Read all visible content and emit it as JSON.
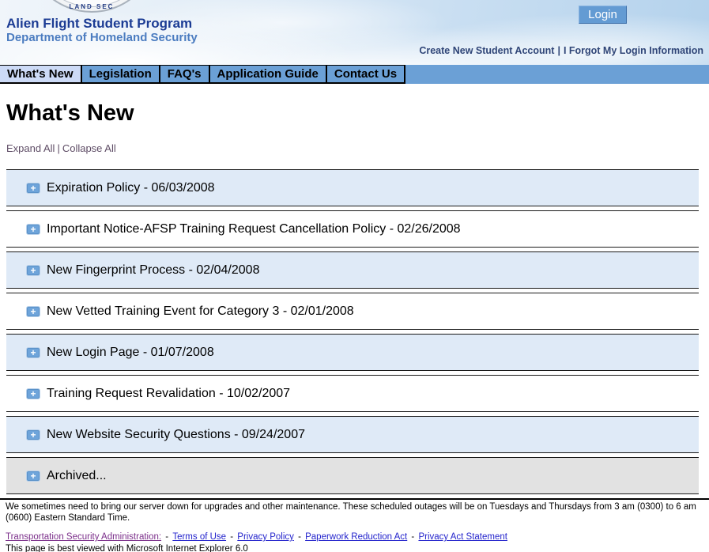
{
  "header": {
    "title": "Alien Flight Student Program",
    "subtitle": "Department of Homeland Security",
    "login_label": "Login",
    "account_link_1": "Create New Student Account",
    "account_link_2": "I Forgot My Login Information",
    "account_separator": "|",
    "seal_text": "LAND SEC"
  },
  "nav": {
    "tabs": [
      {
        "label": "What's New",
        "active": true
      },
      {
        "label": "Legislation",
        "active": false
      },
      {
        "label": "FAQ's",
        "active": false
      },
      {
        "label": "Application Guide",
        "active": false
      },
      {
        "label": "Contact Us",
        "active": false
      }
    ]
  },
  "main": {
    "heading": "What's New",
    "expand_all": "Expand All",
    "collapse_all": "Collapse All",
    "expand_separator": "|",
    "expand_icon": "+",
    "items": [
      {
        "label": "Expiration Policy - 06/03/2008",
        "style": "blue"
      },
      {
        "label": "Important Notice-AFSP Training Request Cancellation Policy - 02/26/2008",
        "style": "white"
      },
      {
        "label": "New Fingerprint Process - 02/04/2008",
        "style": "blue"
      },
      {
        "label": "New Vetted Training Event for Category 3 - 02/01/2008",
        "style": "white"
      },
      {
        "label": "New Login Page - 01/07/2008",
        "style": "blue"
      },
      {
        "label": "Training Request Revalidation - 10/02/2007",
        "style": "white"
      },
      {
        "label": "New Website Security Questions - 09/24/2007",
        "style": "blue"
      },
      {
        "label": "Archived...",
        "style": "gray"
      }
    ]
  },
  "footer": {
    "maintenance_notice": "We sometimes need to bring our server down for upgrades and other maintenance. These scheduled outages will be on Tuesdays and Thursdays from 3 am (0300) to 6 am (0600) Eastern Standard Time.",
    "links": [
      "Transportation Security Administration:",
      "Terms of Use",
      "Privacy Policy",
      "Paperwork Reduction Act",
      "Privacy Act Statement"
    ],
    "link_separator": "-",
    "browser_note": "This page is best viewed with Microsoft Internet Explorer 6.0"
  },
  "colors": {
    "navbar_blue": "#6ba0d6",
    "active_tab": "#ccdaf6",
    "row_blue": "#dfeaf7",
    "row_gray": "#e2e2e2",
    "title_navy": "#1c3c94",
    "subtitle_blue": "#4b7cc0",
    "login_button_blue": "#639bd3",
    "visited_link_purple": "#7b2e8a",
    "link_blue": "#2323cc"
  }
}
